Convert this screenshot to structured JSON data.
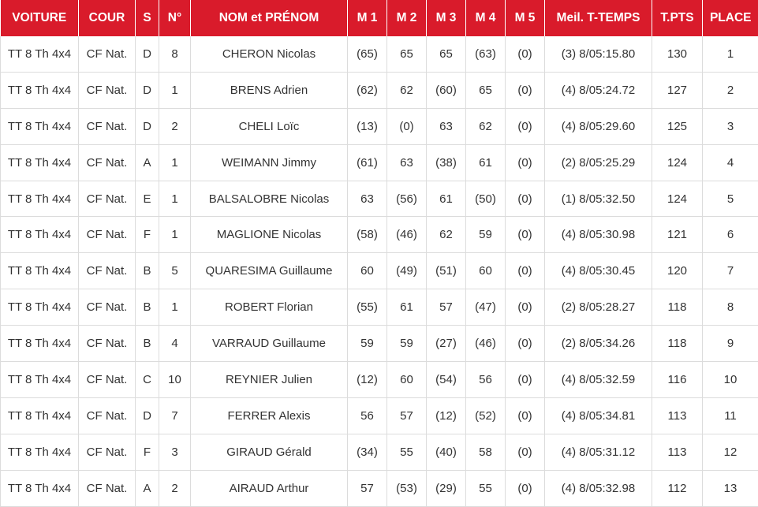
{
  "table": {
    "headers": [
      "VOITURE",
      "COUR",
      "S",
      "N°",
      "NOM et PRÉNOM",
      "M 1",
      "M 2",
      "M 3",
      "M 4",
      "M 5",
      "Meil. T-TEMPS",
      "T.PTS",
      "PLACE"
    ],
    "rows": [
      [
        "TT 8 Th 4x4",
        "CF Nat.",
        "D",
        "8",
        "CHERON Nicolas",
        "(65)",
        "65",
        "65",
        "(63)",
        "(0)",
        "(3) 8/05:15.80",
        "130",
        "1"
      ],
      [
        "TT 8 Th 4x4",
        "CF Nat.",
        "D",
        "1",
        "BRENS Adrien",
        "(62)",
        "62",
        "(60)",
        "65",
        "(0)",
        "(4) 8/05:24.72",
        "127",
        "2"
      ],
      [
        "TT 8 Th 4x4",
        "CF Nat.",
        "D",
        "2",
        "CHELI Loïc",
        "(13)",
        "(0)",
        "63",
        "62",
        "(0)",
        "(4) 8/05:29.60",
        "125",
        "3"
      ],
      [
        "TT 8 Th 4x4",
        "CF Nat.",
        "A",
        "1",
        "WEIMANN Jimmy",
        "(61)",
        "63",
        "(38)",
        "61",
        "(0)",
        "(2) 8/05:25.29",
        "124",
        "4"
      ],
      [
        "TT 8 Th 4x4",
        "CF Nat.",
        "E",
        "1",
        "BALSALOBRE Nicolas",
        "63",
        "(56)",
        "61",
        "(50)",
        "(0)",
        "(1) 8/05:32.50",
        "124",
        "5"
      ],
      [
        "TT 8 Th 4x4",
        "CF Nat.",
        "F",
        "1",
        "MAGLIONE Nicolas",
        "(58)",
        "(46)",
        "62",
        "59",
        "(0)",
        "(4) 8/05:30.98",
        "121",
        "6"
      ],
      [
        "TT 8 Th 4x4",
        "CF Nat.",
        "B",
        "5",
        "QUARESIMA Guillaume",
        "60",
        "(49)",
        "(51)",
        "60",
        "(0)",
        "(4) 8/05:30.45",
        "120",
        "7"
      ],
      [
        "TT 8 Th 4x4",
        "CF Nat.",
        "B",
        "1",
        "ROBERT Florian",
        "(55)",
        "61",
        "57",
        "(47)",
        "(0)",
        "(2) 8/05:28.27",
        "118",
        "8"
      ],
      [
        "TT 8 Th 4x4",
        "CF Nat.",
        "B",
        "4",
        "VARRAUD Guillaume",
        "59",
        "59",
        "(27)",
        "(46)",
        "(0)",
        "(2) 8/05:34.26",
        "118",
        "9"
      ],
      [
        "TT 8 Th 4x4",
        "CF Nat.",
        "C",
        "10",
        "REYNIER Julien",
        "(12)",
        "60",
        "(54)",
        "56",
        "(0)",
        "(4) 8/05:32.59",
        "116",
        "10"
      ],
      [
        "TT 8 Th 4x4",
        "CF Nat.",
        "D",
        "7",
        "FERRER Alexis",
        "56",
        "57",
        "(12)",
        "(52)",
        "(0)",
        "(4) 8/05:34.81",
        "113",
        "11"
      ],
      [
        "TT 8 Th 4x4",
        "CF Nat.",
        "F",
        "3",
        "GIRAUD Gérald",
        "(34)",
        "55",
        "(40)",
        "58",
        "(0)",
        "(4) 8/05:31.12",
        "113",
        "12"
      ],
      [
        "TT 8 Th 4x4",
        "CF Nat.",
        "A",
        "2",
        "AIRAUD Arthur",
        "57",
        "(53)",
        "(29)",
        "55",
        "(0)",
        "(4) 8/05:32.98",
        "112",
        "13"
      ]
    ]
  },
  "colors": {
    "header_bg": "#d91b2b",
    "header_text": "#ffffff",
    "body_text": "#333333",
    "grid_line": "#dcdcdc"
  }
}
